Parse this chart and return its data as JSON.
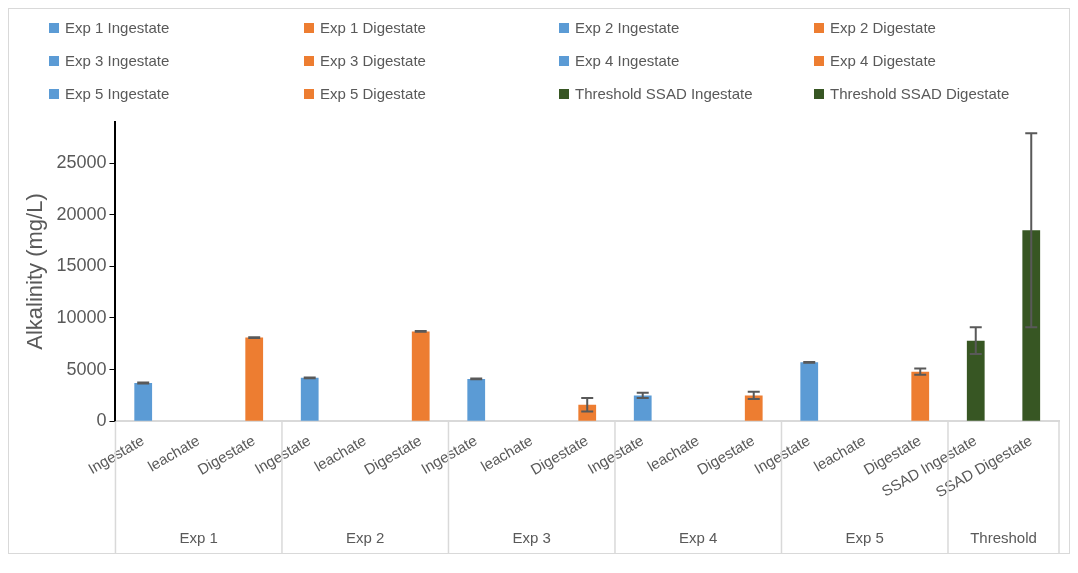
{
  "chart_data": {
    "type": "bar",
    "ylabel": "Alkalinity (mg/L)",
    "categories": [
      "Ingestate",
      "leachate",
      "Digestate",
      "Ingestate",
      "leachate",
      "Digestate",
      "Ingestate",
      "leachate",
      "Digestate",
      "Ingestate",
      "leachate",
      "Digestate",
      "Ingestate",
      "leachate",
      "Digestate",
      "SSAD Ingestate",
      "SSAD Digestate"
    ],
    "series": [
      {
        "name": "Exp 1 Ingestate",
        "color": "#5b9bd5",
        "values": [
          3700,
          null,
          null,
          null,
          null,
          null,
          null,
          null,
          null,
          null,
          null,
          null,
          null,
          null,
          null,
          null,
          null
        ],
        "errors": [
          50,
          null,
          null,
          null,
          null,
          null,
          null,
          null,
          null,
          null,
          null,
          null,
          null,
          null,
          null,
          null,
          null
        ]
      },
      {
        "name": "Exp 1 Digestate",
        "color": "#ed7d31",
        "values": [
          null,
          null,
          8100,
          null,
          null,
          null,
          null,
          null,
          null,
          null,
          null,
          null,
          null,
          null,
          null,
          null,
          null
        ],
        "errors": [
          null,
          null,
          30,
          null,
          null,
          null,
          null,
          null,
          null,
          null,
          null,
          null,
          null,
          null,
          null,
          null,
          null
        ]
      },
      {
        "name": "Exp 2 Ingestate",
        "color": "#5b9bd5",
        "values": [
          null,
          null,
          null,
          4200,
          null,
          null,
          null,
          null,
          null,
          null,
          null,
          null,
          null,
          null,
          null,
          null,
          null
        ],
        "errors": [
          null,
          null,
          null,
          40,
          null,
          null,
          null,
          null,
          null,
          null,
          null,
          null,
          null,
          null,
          null,
          null,
          null
        ]
      },
      {
        "name": "Exp 2 Digestate",
        "color": "#ed7d31",
        "values": [
          null,
          null,
          null,
          null,
          null,
          8700,
          null,
          null,
          null,
          null,
          null,
          null,
          null,
          null,
          null,
          null,
          null
        ],
        "errors": [
          null,
          null,
          null,
          null,
          null,
          30,
          null,
          null,
          null,
          null,
          null,
          null,
          null,
          null,
          null,
          null,
          null
        ]
      },
      {
        "name": "Exp 3 Ingestate",
        "color": "#5b9bd5",
        "values": [
          null,
          null,
          null,
          null,
          null,
          null,
          4100,
          null,
          null,
          null,
          null,
          null,
          null,
          null,
          null,
          null,
          null
        ],
        "errors": [
          null,
          null,
          null,
          null,
          null,
          null,
          40,
          null,
          null,
          null,
          null,
          null,
          null,
          null,
          null,
          null,
          null
        ]
      },
      {
        "name": "Exp 3 Digestate",
        "color": "#ed7d31",
        "values": [
          null,
          null,
          null,
          null,
          null,
          null,
          null,
          null,
          1600,
          null,
          null,
          null,
          null,
          null,
          null,
          null,
          null
        ],
        "errors": [
          null,
          null,
          null,
          null,
          null,
          null,
          null,
          null,
          650,
          null,
          null,
          null,
          null,
          null,
          null,
          null,
          null
        ]
      },
      {
        "name": "Exp 4 Ingestate",
        "color": "#5b9bd5",
        "values": [
          null,
          null,
          null,
          null,
          null,
          null,
          null,
          null,
          null,
          2500,
          null,
          null,
          null,
          null,
          null,
          null,
          null
        ],
        "errors": [
          null,
          null,
          null,
          null,
          null,
          null,
          null,
          null,
          null,
          250,
          null,
          null,
          null,
          null,
          null,
          null,
          null
        ]
      },
      {
        "name": "Exp 4 Digestate",
        "color": "#ed7d31",
        "values": [
          null,
          null,
          null,
          null,
          null,
          null,
          null,
          null,
          null,
          null,
          null,
          2500,
          null,
          null,
          null,
          null,
          null
        ],
        "errors": [
          null,
          null,
          null,
          null,
          null,
          null,
          null,
          null,
          null,
          null,
          null,
          350,
          null,
          null,
          null,
          null,
          null
        ]
      },
      {
        "name": "Exp 5 Ingestate",
        "color": "#5b9bd5",
        "values": [
          null,
          null,
          null,
          null,
          null,
          null,
          null,
          null,
          null,
          null,
          null,
          null,
          5700,
          null,
          null,
          null,
          null
        ],
        "errors": [
          null,
          null,
          null,
          null,
          null,
          null,
          null,
          null,
          null,
          null,
          null,
          null,
          40,
          null,
          null,
          null,
          null
        ]
      },
      {
        "name": "Exp 5 Digestate",
        "color": "#ed7d31",
        "values": [
          null,
          null,
          null,
          null,
          null,
          null,
          null,
          null,
          null,
          null,
          null,
          null,
          null,
          null,
          4800,
          null,
          null
        ],
        "errors": [
          null,
          null,
          null,
          null,
          null,
          null,
          null,
          null,
          null,
          null,
          null,
          null,
          null,
          null,
          300,
          null,
          null
        ]
      },
      {
        "name": "Threshold SSAD Ingestate",
        "color": "#375623",
        "values": [
          null,
          null,
          null,
          null,
          null,
          null,
          null,
          null,
          null,
          null,
          null,
          null,
          null,
          null,
          null,
          7800,
          null
        ],
        "errors": [
          null,
          null,
          null,
          null,
          null,
          null,
          null,
          null,
          null,
          null,
          null,
          null,
          null,
          null,
          null,
          1300,
          null
        ]
      },
      {
        "name": "Threshold SSAD Digestate",
        "color": "#375623",
        "values": [
          null,
          null,
          null,
          null,
          null,
          null,
          null,
          null,
          null,
          null,
          null,
          null,
          null,
          null,
          null,
          null,
          18500
        ],
        "errors": [
          null,
          null,
          null,
          null,
          null,
          null,
          null,
          null,
          null,
          null,
          null,
          null,
          null,
          null,
          null,
          null,
          9400
        ]
      }
    ],
    "annotations": [
      "Exp 1",
      "Exp 2",
      "Exp 3",
      "Exp 4",
      "Exp 5",
      "Threshold"
    ],
    "ylim": [
      0,
      29000
    ],
    "yticks": [
      0,
      5000,
      10000,
      15000,
      20000,
      25000
    ],
    "legend": "top"
  }
}
